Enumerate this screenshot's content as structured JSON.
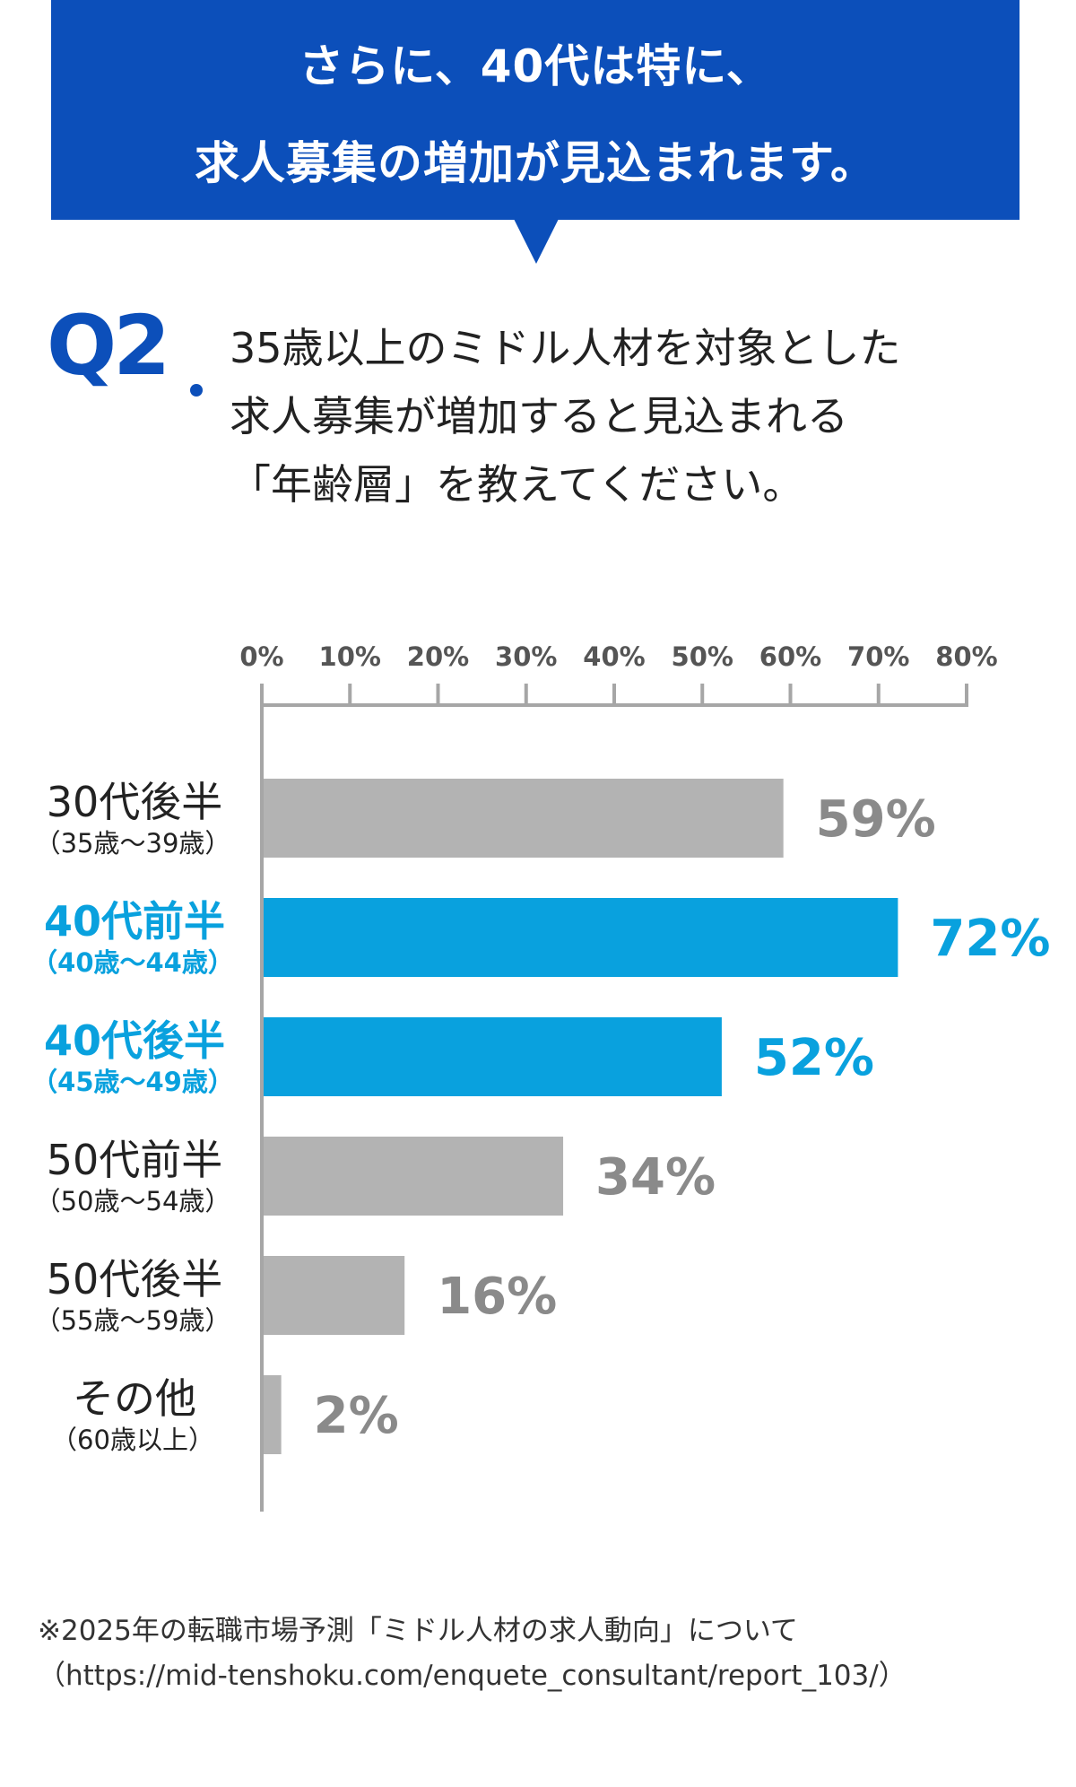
{
  "banner": {
    "line1": "さらに、40代は特に、",
    "line2": "求人募集の増加が見込まれます。",
    "color": "#0c4fba"
  },
  "question": {
    "label": "Q2",
    "line1": "35歳以上のミドル人材を対象とした",
    "line2": "求人募集が増加すると見込まれる",
    "line3": "「年齢層」を教えてください。"
  },
  "chart_data": {
    "type": "bar",
    "orientation": "horizontal",
    "categories": [
      {
        "label": "30代後半",
        "sublabel": "（35歳〜39歳）",
        "highlight": false
      },
      {
        "label": "40代前半",
        "sublabel": "（40歳〜44歳）",
        "highlight": true
      },
      {
        "label": "40代後半",
        "sublabel": "（45歳〜49歳）",
        "highlight": true
      },
      {
        "label": "50代前半",
        "sublabel": "（50歳〜54歳）",
        "highlight": false
      },
      {
        "label": "50代後半",
        "sublabel": "（55歳〜59歳）",
        "highlight": false
      },
      {
        "label": "その他",
        "sublabel": "（60歳以上）",
        "highlight": false
      }
    ],
    "values": [
      59,
      72,
      52,
      34,
      16,
      2
    ],
    "value_labels": [
      "59%",
      "72%",
      "52%",
      "34%",
      "16%",
      "2%"
    ],
    "xlim": [
      0,
      80
    ],
    "ticks": [
      0,
      10,
      20,
      30,
      40,
      50,
      60,
      70,
      80
    ],
    "tick_labels": [
      "0%",
      "10%",
      "20%",
      "30%",
      "40%",
      "50%",
      "60%",
      "70%",
      "80%"
    ],
    "grid": false,
    "colors": {
      "normal_bar": "#b3b3b3",
      "highlight_bar": "#09a1de",
      "normal_text": "#222222",
      "normal_value": "#8a8a8a",
      "highlight_text": "#09a1de",
      "axis": "#a6a6a6",
      "tick_label": "#555555"
    }
  },
  "footnote": {
    "line1": "※2025年の転職市場予測「ミドル人材の求人動向」について",
    "line2": "（https://mid-tenshoku.com/enquete_consultant/report_103/）"
  }
}
